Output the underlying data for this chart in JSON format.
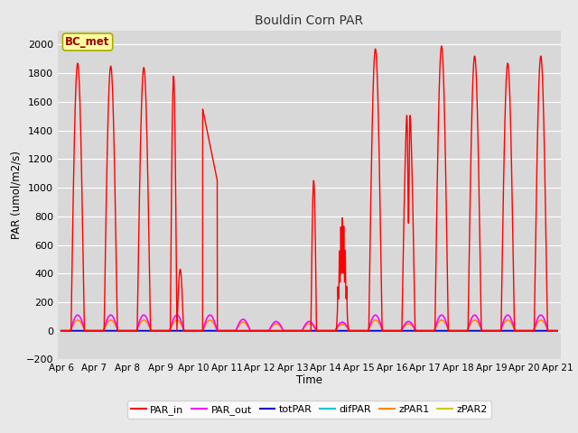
{
  "title": "Bouldin Corn PAR",
  "ylabel": "PAR (umol/m2/s)",
  "xlabel": "Time",
  "ylim": [
    -200,
    2100
  ],
  "yticks": [
    -200,
    0,
    200,
    400,
    600,
    800,
    1000,
    1200,
    1400,
    1600,
    1800,
    2000
  ],
  "annotation": "BC_met",
  "x_tick_labels": [
    "Apr 6",
    "Apr 7",
    "Apr 8",
    "Apr 9",
    "Apr 10",
    "Apr 11",
    "Apr 12",
    "Apr 13",
    "Apr 14",
    "Apr 15",
    "Apr 16",
    "Apr 17",
    "Apr 18",
    "Apr 19",
    "Apr 20",
    "Apr 21"
  ],
  "legend_entries": [
    "PAR_in",
    "PAR_out",
    "totPAR",
    "difPAR",
    "zPAR1",
    "zPAR2"
  ],
  "legend_colors": [
    "#ff0000",
    "#ff00ff",
    "#0000ff",
    "#00cccc",
    "#ff8800",
    "#cccc00"
  ],
  "fig_facecolor": "#e8e8e8",
  "ax_facecolor": "#d8d8d8",
  "grid_color": "#ffffff"
}
